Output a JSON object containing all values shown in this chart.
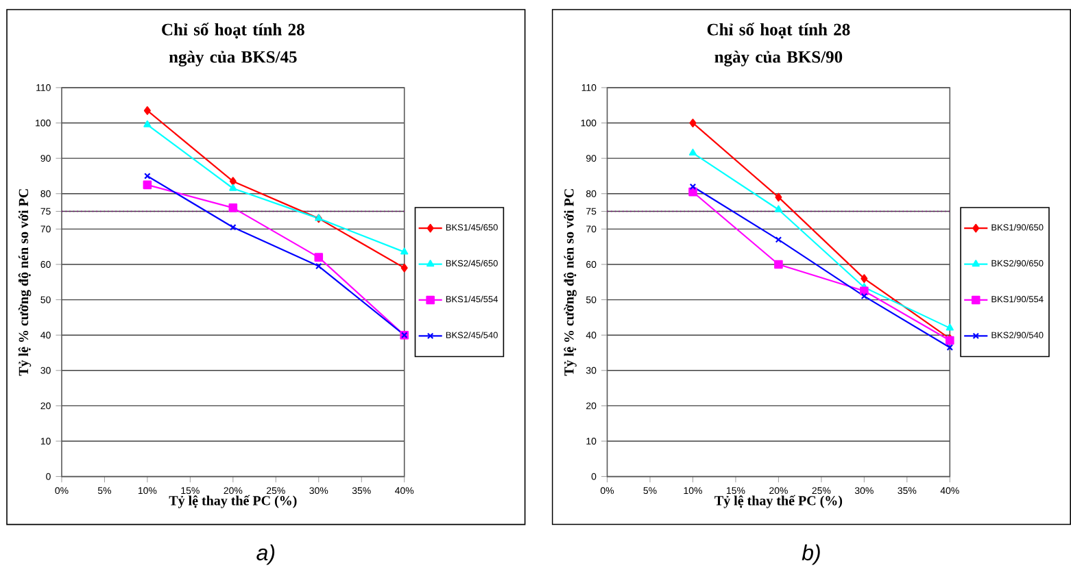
{
  "chart_data": [
    {
      "type": "line",
      "title": "Chỉ số hoạt tính 28 ngày của BKS/45",
      "xlabel": "Tỷ lệ thay thế PC (%)",
      "ylabel": "Tỷ lệ %  cường độ nén so với PC",
      "annotations": [
        "a)"
      ],
      "x": [
        10,
        20,
        30,
        40
      ],
      "series": [
        {
          "name": "BKS1/45/650",
          "color": "#ff0000",
          "marker": "diamond",
          "values": [
            103.5,
            83.5,
            73,
            59
          ]
        },
        {
          "name": "BKS2/45/650",
          "color": "#00ffff",
          "marker": "triangle",
          "values": [
            99.5,
            81.5,
            73,
            63.5
          ]
        },
        {
          "name": "BKS1/45/554",
          "color": "#ff00ff",
          "marker": "square",
          "values": [
            82.5,
            76,
            62,
            40
          ]
        },
        {
          "name": "BKS2/45/540",
          "color": "#0000ff",
          "marker": "cross",
          "values": [
            85,
            70.5,
            59.5,
            40
          ]
        }
      ],
      "xlim": [
        0,
        40
      ],
      "xticks": [
        {
          "value": 0,
          "label": "0%"
        },
        {
          "value": 5,
          "label": "5%"
        },
        {
          "value": 10,
          "label": "10%"
        },
        {
          "value": 15,
          "label": "15%"
        },
        {
          "value": 20,
          "label": "20%"
        },
        {
          "value": 25,
          "label": "25%"
        },
        {
          "value": 30,
          "label": "30%"
        },
        {
          "value": 35,
          "label": "35%"
        },
        {
          "value": 40,
          "label": "40%"
        }
      ],
      "ylim": [
        0,
        110
      ],
      "yticks": [
        0,
        10,
        20,
        30,
        40,
        50,
        60,
        70,
        75,
        80,
        90,
        100,
        110
      ],
      "ref_lines": [
        {
          "axis": "y",
          "value": 75,
          "color": "#800080",
          "line_style": "dotted"
        }
      ],
      "grid": "y",
      "legend": "right",
      "line_style": "solid"
    },
    {
      "type": "line",
      "title": "Chỉ số hoạt tính 28 ngày của BKS/90",
      "xlabel": "Tỷ lệ thay thế PC (%)",
      "ylabel": "Tỷ lệ %  cường độ nén so với PC",
      "annotations": [
        "b)"
      ],
      "x": [
        10,
        20,
        30,
        40
      ],
      "series": [
        {
          "name": "BKS1/90/650",
          "color": "#ff0000",
          "marker": "diamond",
          "values": [
            100,
            79,
            56,
            39
          ]
        },
        {
          "name": "BKS2/90/650",
          "color": "#00ffff",
          "marker": "triangle",
          "values": [
            91.5,
            75.5,
            53.5,
            42
          ]
        },
        {
          "name": "BKS1/90/554",
          "color": "#ff00ff",
          "marker": "square",
          "values": [
            80.5,
            60,
            52.5,
            38.5
          ]
        },
        {
          "name": "BKS2/90/540",
          "color": "#0000ff",
          "marker": "cross",
          "values": [
            82,
            67,
            51,
            36.5
          ]
        }
      ],
      "xlim": [
        0,
        40
      ],
      "xticks": [
        {
          "value": 0,
          "label": "0%"
        },
        {
          "value": 5,
          "label": "5%"
        },
        {
          "value": 10,
          "label": "10%"
        },
        {
          "value": 15,
          "label": "15%"
        },
        {
          "value": 20,
          "label": "20%"
        },
        {
          "value": 25,
          "label": "25%"
        },
        {
          "value": 30,
          "label": "30%"
        },
        {
          "value": 35,
          "label": "35%"
        },
        {
          "value": 40,
          "label": "40%"
        }
      ],
      "ylim": [
        0,
        110
      ],
      "yticks": [
        0,
        10,
        20,
        30,
        40,
        50,
        60,
        70,
        75,
        80,
        90,
        100,
        110
      ],
      "ref_lines": [
        {
          "axis": "y",
          "value": 75,
          "color": "#800080",
          "line_style": "dotted"
        }
      ],
      "grid": "y",
      "legend": "right",
      "line_style": "solid"
    }
  ]
}
